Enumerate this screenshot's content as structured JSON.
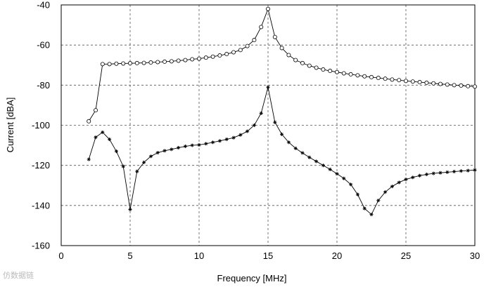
{
  "chart_data": {
    "type": "line",
    "title": "",
    "xlabel": "Frequency [MHz]",
    "ylabel": "Current [dBA]",
    "xlim": [
      0,
      30
    ],
    "ylim": [
      -160,
      -40
    ],
    "xticks": [
      0,
      5,
      10,
      15,
      20,
      25,
      30
    ],
    "yticks": [
      -40,
      -60,
      -80,
      -100,
      -120,
      -140,
      -160
    ],
    "grid": true,
    "legend": "none",
    "series": [
      {
        "marker": "circle",
        "x": [
          2,
          2.5,
          3,
          3.5,
          4,
          4.5,
          5,
          5.5,
          6,
          6.5,
          7,
          7.5,
          8,
          8.5,
          9,
          9.5,
          10,
          10.5,
          11,
          11.5,
          12,
          12.5,
          13,
          13.5,
          14,
          14.5,
          15,
          15.5,
          16,
          16.5,
          17,
          17.5,
          18,
          18.5,
          19,
          19.5,
          20,
          20.5,
          21,
          21.5,
          22,
          22.5,
          23,
          23.5,
          24,
          24.5,
          25,
          25.5,
          26,
          26.5,
          27,
          27.5,
          28,
          28.5,
          29,
          29.5,
          30
        ],
        "y": [
          -98,
          -92.5,
          -69.5,
          -69.5,
          -69.3,
          -69.2,
          -69.1,
          -69,
          -68.9,
          -68.7,
          -68.5,
          -68.3,
          -68.1,
          -67.8,
          -67.5,
          -67.1,
          -66.8,
          -66.3,
          -65.8,
          -65.2,
          -64.5,
          -63.6,
          -62.5,
          -60.5,
          -57.5,
          -51,
          -42,
          -56,
          -61.5,
          -65,
          -67.5,
          -69,
          -70.3,
          -71.3,
          -72.2,
          -72.9,
          -73.5,
          -74.1,
          -74.6,
          -75.1,
          -75.6,
          -76,
          -76.4,
          -76.8,
          -77.2,
          -77.5,
          -77.9,
          -78.2,
          -78.5,
          -78.8,
          -79.1,
          -79.4,
          -79.7,
          -80,
          -80.2,
          -80.5,
          -80.7
        ]
      },
      {
        "marker": "star",
        "x": [
          2,
          2.5,
          3,
          3.5,
          4,
          4.5,
          5,
          5.5,
          6,
          6.5,
          7,
          7.5,
          8,
          8.5,
          9,
          9.5,
          10,
          10.5,
          11,
          11.5,
          12,
          12.5,
          13,
          13.5,
          14,
          14.5,
          15,
          15.5,
          16,
          16.5,
          17,
          17.5,
          18,
          18.5,
          19,
          19.5,
          20,
          20.5,
          21,
          21.5,
          22,
          22.5,
          23,
          23.5,
          24,
          24.5,
          25,
          25.5,
          26,
          26.5,
          27,
          27.5,
          28,
          28.5,
          29,
          29.5,
          30
        ],
        "y": [
          -117,
          -106,
          -103.5,
          -107,
          -113,
          -120.5,
          -142,
          -123,
          -118.5,
          -115.5,
          -113.7,
          -112.7,
          -112,
          -111.2,
          -110.5,
          -110,
          -109.8,
          -109.2,
          -108.5,
          -107.8,
          -107,
          -106.2,
          -104.8,
          -103,
          -100,
          -94,
          -81,
          -98.5,
          -104.5,
          -108.5,
          -111.5,
          -113.8,
          -116,
          -118,
          -120,
          -122,
          -124.2,
          -126.5,
          -129.5,
          -134.5,
          -141.5,
          -144.5,
          -137.5,
          -133.3,
          -130.5,
          -128.5,
          -127,
          -126,
          -125.1,
          -124.5,
          -124,
          -123.7,
          -123.4,
          -123.1,
          -122.8,
          -122.6,
          -122.3
        ]
      }
    ]
  },
  "watermark": "仿数据链"
}
